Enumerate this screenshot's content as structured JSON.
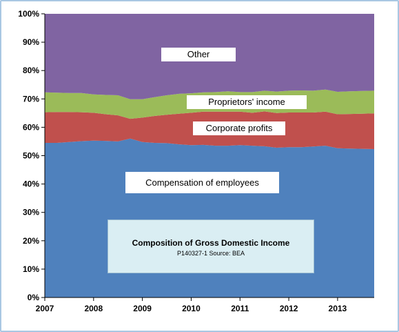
{
  "chart_data": {
    "type": "area",
    "stacked": true,
    "percent": true,
    "title": "Composition of Gross Domestic Income",
    "subtitle": "P140327-1 Source: BEA",
    "x": [
      2007.0,
      2007.25,
      2007.5,
      2007.75,
      2008.0,
      2008.25,
      2008.5,
      2008.75,
      2009.0,
      2009.25,
      2009.5,
      2009.75,
      2010.0,
      2010.25,
      2010.5,
      2010.75,
      2011.0,
      2011.25,
      2011.5,
      2011.75,
      2012.0,
      2012.25,
      2012.5,
      2012.75,
      2013.0,
      2013.25,
      2013.5,
      2013.75
    ],
    "xlim": [
      2007,
      2013.75
    ],
    "ylim": [
      0,
      100
    ],
    "y_unit": "%",
    "x_ticks": [
      "2007",
      "2008",
      "2009",
      "2010",
      "2011",
      "2012",
      "2013"
    ],
    "y_ticks": [
      "0%",
      "10%",
      "20%",
      "30%",
      "40%",
      "50%",
      "60%",
      "70%",
      "80%",
      "90%",
      "100%"
    ],
    "series": [
      {
        "name": "Compensation of employees",
        "color": "#4f81bd",
        "values": [
          54.5,
          54.5,
          54.8,
          55.1,
          55.3,
          55.2,
          55.0,
          56.0,
          54.8,
          54.5,
          54.4,
          54.0,
          53.7,
          53.8,
          53.5,
          53.5,
          53.7,
          53.5,
          53.3,
          52.8,
          53.0,
          53.0,
          53.2,
          53.5,
          52.6,
          52.5,
          52.4,
          52.3
        ]
      },
      {
        "name": "Corporate profits",
        "color": "#c0504d",
        "values": [
          10.8,
          10.9,
          10.6,
          10.2,
          9.8,
          9.4,
          9.2,
          7.0,
          8.6,
          9.5,
          10.0,
          10.8,
          11.4,
          11.7,
          12.0,
          12.0,
          11.8,
          11.6,
          12.3,
          12.2,
          12.2,
          12.2,
          12.0,
          12.0,
          12.0,
          12.2,
          12.4,
          12.6
        ]
      },
      {
        "name": "Proprietors' income",
        "color": "#9bbb59",
        "values": [
          7.0,
          6.8,
          6.7,
          6.8,
          6.5,
          6.8,
          7.1,
          6.9,
          6.5,
          6.6,
          6.9,
          7.0,
          6.9,
          6.8,
          6.9,
          7.2,
          6.9,
          7.3,
          7.3,
          7.6,
          7.7,
          7.8,
          7.7,
          7.8,
          7.9,
          8.0,
          8.0,
          8.0
        ]
      },
      {
        "name": "Other",
        "color": "#8064a2",
        "values": [
          27.7,
          27.8,
          27.9,
          27.9,
          28.4,
          28.6,
          28.7,
          30.1,
          30.1,
          29.4,
          28.7,
          28.2,
          28.0,
          27.7,
          27.6,
          27.3,
          27.6,
          27.6,
          27.1,
          27.4,
          27.1,
          27.0,
          27.1,
          26.7,
          27.5,
          27.3,
          27.2,
          27.1
        ]
      }
    ],
    "series_labels": [
      "Compensation of employees",
      "Corporate profits",
      "Proprietors' income",
      "Other"
    ],
    "grid": false,
    "legend": "none"
  }
}
